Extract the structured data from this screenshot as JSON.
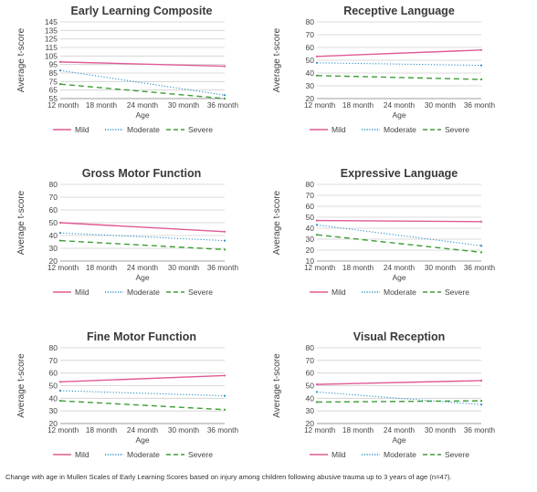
{
  "caption": "Change with age in Mullen Scales of Early Learning Scores based on injury among children following abusive trauma up to 3 years of age (n=47).",
  "colors": {
    "Mild": "#e05a94",
    "Moderate": "#2a8fc7",
    "Severe": "#3f9e35",
    "grid": "#cfcfcf",
    "axis": "#888888",
    "text": "#444444"
  },
  "chart_data": [
    {
      "type": "line",
      "title": "Early Learning Composite",
      "xlabel": "Age",
      "ylabel": "Average t-score",
      "categories": [
        "12 month",
        "18 month",
        "24 month",
        "30 month",
        "36 month"
      ],
      "yticks": [
        55,
        65,
        75,
        85,
        95,
        105,
        115,
        125,
        135,
        145
      ],
      "ylim": [
        55,
        145
      ],
      "grid": true,
      "legend": "bottom",
      "series": [
        {
          "name": "Mild",
          "style": "solid",
          "values": [
            98,
            null,
            null,
            null,
            93
          ]
        },
        {
          "name": "Moderate",
          "style": "dotted",
          "values": [
            88,
            null,
            null,
            null,
            59
          ]
        },
        {
          "name": "Severe",
          "style": "dashed",
          "values": [
            72,
            null,
            null,
            null,
            55
          ]
        }
      ]
    },
    {
      "type": "line",
      "title": "Receptive Language",
      "xlabel": "Age",
      "ylabel": "Average t-score",
      "categories": [
        "12 month",
        "18 month",
        "24 month",
        "30 month",
        "36 month"
      ],
      "yticks": [
        20,
        30,
        40,
        50,
        60,
        70,
        80
      ],
      "ylim": [
        20,
        80
      ],
      "grid": true,
      "legend": "bottom",
      "series": [
        {
          "name": "Mild",
          "style": "solid",
          "values": [
            53,
            null,
            null,
            null,
            58
          ]
        },
        {
          "name": "Moderate",
          "style": "dotted",
          "values": [
            48,
            null,
            null,
            null,
            46
          ]
        },
        {
          "name": "Severe",
          "style": "dashed",
          "values": [
            38,
            null,
            null,
            null,
            35
          ]
        }
      ]
    },
    {
      "type": "line",
      "title": "Gross Motor Function",
      "xlabel": "Age",
      "ylabel": "Average t-score",
      "categories": [
        "12 month",
        "18 month",
        "24 month",
        "30 month",
        "36 month"
      ],
      "yticks": [
        20,
        30,
        40,
        50,
        60,
        70,
        80
      ],
      "ylim": [
        20,
        80
      ],
      "grid": true,
      "legend": "bottom",
      "series": [
        {
          "name": "Mild",
          "style": "solid",
          "values": [
            50,
            null,
            null,
            null,
            43
          ]
        },
        {
          "name": "Moderate",
          "style": "dotted",
          "values": [
            42,
            null,
            null,
            null,
            36
          ]
        },
        {
          "name": "Severe",
          "style": "dashed",
          "values": [
            36,
            null,
            null,
            null,
            29
          ]
        }
      ]
    },
    {
      "type": "line",
      "title": "Expressive Language",
      "xlabel": "Age",
      "ylabel": "Average t-score",
      "categories": [
        "12 month",
        "18 month",
        "24 month",
        "30 month",
        "36 month"
      ],
      "yticks": [
        10,
        20,
        30,
        40,
        50,
        60,
        70,
        80
      ],
      "ylim": [
        10,
        80
      ],
      "grid": true,
      "legend": "bottom",
      "series": [
        {
          "name": "Mild",
          "style": "solid",
          "values": [
            47,
            null,
            null,
            null,
            46
          ]
        },
        {
          "name": "Moderate",
          "style": "dotted",
          "values": [
            43,
            null,
            null,
            null,
            24
          ]
        },
        {
          "name": "Severe",
          "style": "dashed",
          "values": [
            34,
            null,
            null,
            null,
            18
          ]
        }
      ]
    },
    {
      "type": "line",
      "title": "Fine Motor Function",
      "xlabel": "Age",
      "ylabel": "Average t-score",
      "categories": [
        "12 month",
        "18 month",
        "24 month",
        "30 month",
        "36 month"
      ],
      "yticks": [
        20,
        30,
        40,
        50,
        60,
        70,
        80
      ],
      "ylim": [
        20,
        80
      ],
      "grid": true,
      "legend": "bottom",
      "series": [
        {
          "name": "Mild",
          "style": "solid",
          "values": [
            53,
            null,
            null,
            null,
            58
          ]
        },
        {
          "name": "Moderate",
          "style": "dotted",
          "values": [
            46,
            null,
            null,
            null,
            42
          ]
        },
        {
          "name": "Severe",
          "style": "dashed",
          "values": [
            38,
            null,
            null,
            null,
            31
          ]
        }
      ]
    },
    {
      "type": "line",
      "title": "Visual Reception",
      "xlabel": "Age",
      "ylabel": "Average t-score",
      "categories": [
        "12 month",
        "18 month",
        "24 month",
        "30 month",
        "36 month"
      ],
      "yticks": [
        20,
        30,
        40,
        50,
        60,
        70,
        80
      ],
      "ylim": [
        20,
        80
      ],
      "grid": true,
      "legend": "bottom",
      "series": [
        {
          "name": "Mild",
          "style": "solid",
          "values": [
            51,
            null,
            null,
            null,
            54
          ]
        },
        {
          "name": "Moderate",
          "style": "dotted",
          "values": [
            45,
            null,
            null,
            null,
            35
          ]
        },
        {
          "name": "Severe",
          "style": "dashed",
          "values": [
            37,
            null,
            null,
            null,
            38
          ]
        }
      ]
    }
  ]
}
